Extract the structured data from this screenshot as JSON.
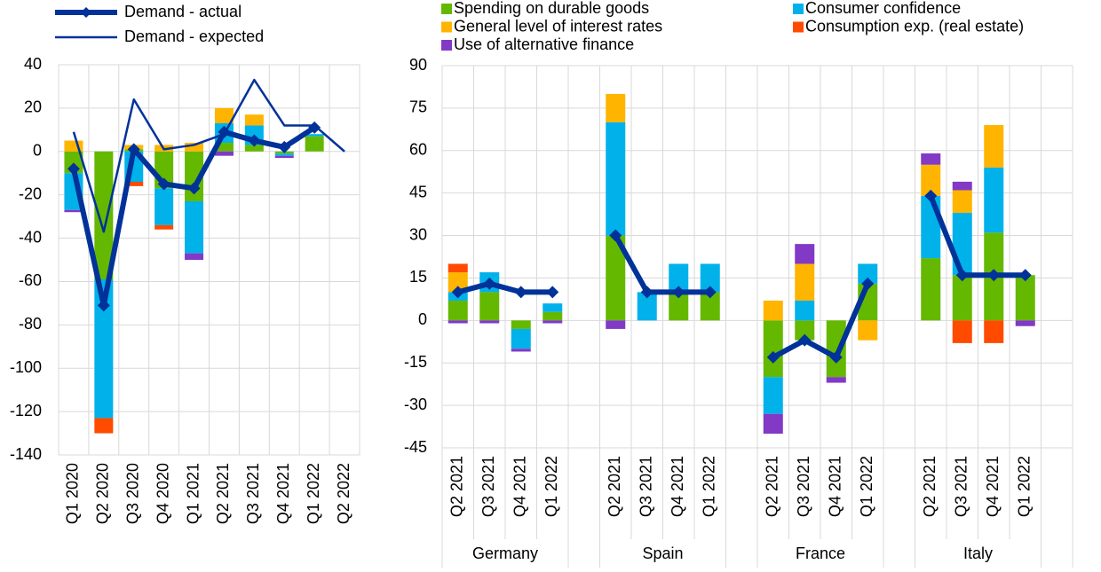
{
  "chart_data": [
    {
      "type": "bar",
      "stacked": true,
      "grid": true,
      "categories": [
        "Q1 2020",
        "Q2 2020",
        "Q3 2020",
        "Q4 2020",
        "Q1 2021",
        "Q2 2021",
        "Q3 2021",
        "Q4 2021",
        "Q1 2022",
        "Q2 2022"
      ],
      "ylim": [
        -140,
        40
      ],
      "yticks": [
        -140,
        -120,
        -100,
        -80,
        -60,
        -40,
        -20,
        0,
        20,
        40
      ],
      "series": [
        {
          "type": "bar",
          "color": "#65b800",
          "values": [
            -10,
            -59,
            1,
            -17,
            -23,
            4,
            3,
            -1,
            7,
            null
          ]
        },
        {
          "type": "bar",
          "color": "#00b1ea",
          "values": [
            -17,
            -64,
            -14,
            -17,
            -24,
            9,
            9,
            -1,
            1,
            null
          ]
        },
        {
          "type": "bar",
          "color": "#ffb400",
          "values": [
            5,
            null,
            2,
            3,
            4,
            7,
            5,
            null,
            null,
            null
          ]
        },
        {
          "type": "bar",
          "color": "#ff4b00",
          "values": [
            null,
            -7,
            -2,
            -2,
            null,
            null,
            null,
            null,
            null,
            null
          ]
        },
        {
          "type": "bar",
          "color": "#8139c6",
          "values": [
            -1,
            null,
            null,
            null,
            -3,
            -2,
            null,
            -1,
            null,
            null
          ]
        },
        {
          "type": "line",
          "name": "Demand - actual",
          "color": "#003299",
          "width": 6,
          "markers": true,
          "values": [
            -8,
            -71,
            1,
            -15,
            -17,
            9,
            5,
            2,
            11,
            null
          ]
        },
        {
          "type": "line",
          "name": "Demand - expected",
          "color": "#003299",
          "width": 2.5,
          "markers": false,
          "values": [
            9,
            -37,
            24,
            1,
            3,
            8,
            33,
            12,
            12,
            0
          ]
        }
      ]
    },
    {
      "type": "bar",
      "stacked": true,
      "grid": true,
      "groups": [
        "Germany",
        "Spain",
        "France",
        "Italy"
      ],
      "categories": [
        "Q2 2021",
        "Q3 2021",
        "Q4 2021",
        "Q1 2022",
        "Q2 2021",
        "Q3 2021",
        "Q4 2021",
        "Q1 2022",
        "Q2 2021",
        "Q3 2021",
        "Q4 2021",
        "Q1 2022",
        "Q2 2021",
        "Q3 2021",
        "Q4 2021",
        "Q1 2022"
      ],
      "ylim": [
        -45,
        90
      ],
      "yticks": [
        -45,
        -30,
        -15,
        0,
        15,
        30,
        45,
        60,
        75,
        90
      ],
      "series": [
        {
          "type": "bar",
          "name": "Spending on durable goods",
          "color": "#65b800",
          "values": [
            7,
            10,
            -3,
            3,
            30,
            null,
            10,
            10,
            -20,
            -7,
            -20,
            13,
            22,
            16,
            31,
            16
          ]
        },
        {
          "type": "bar",
          "name": "Consumer confidence",
          "color": "#00b1ea",
          "values": [
            3,
            7,
            -7,
            3,
            40,
            10,
            10,
            10,
            -13,
            7,
            null,
            7,
            22,
            22,
            23,
            null
          ]
        },
        {
          "type": "bar",
          "name": "General level of interest rates",
          "color": "#ffb400",
          "values": [
            7,
            null,
            null,
            null,
            10,
            null,
            null,
            null,
            7,
            13,
            null,
            -7,
            11,
            8,
            15,
            null
          ]
        },
        {
          "type": "bar",
          "name": "Consumption exp. (real estate)",
          "color": "#ff4b00",
          "values": [
            3,
            null,
            null,
            null,
            null,
            null,
            null,
            null,
            null,
            null,
            null,
            null,
            null,
            -8,
            -8,
            null
          ]
        },
        {
          "type": "bar",
          "name": "Use of alternative finance",
          "color": "#8139c6",
          "values": [
            -1,
            -1,
            -1,
            -1,
            -3,
            null,
            null,
            null,
            -7,
            7,
            -2,
            null,
            4,
            3,
            null,
            -2
          ]
        },
        {
          "type": "line",
          "color": "#003299",
          "width": 6,
          "markers": true,
          "values": [
            10,
            13,
            10,
            10,
            30,
            10,
            10,
            10,
            -13,
            -7,
            -13,
            13,
            44,
            16,
            16,
            16
          ]
        }
      ]
    }
  ]
}
